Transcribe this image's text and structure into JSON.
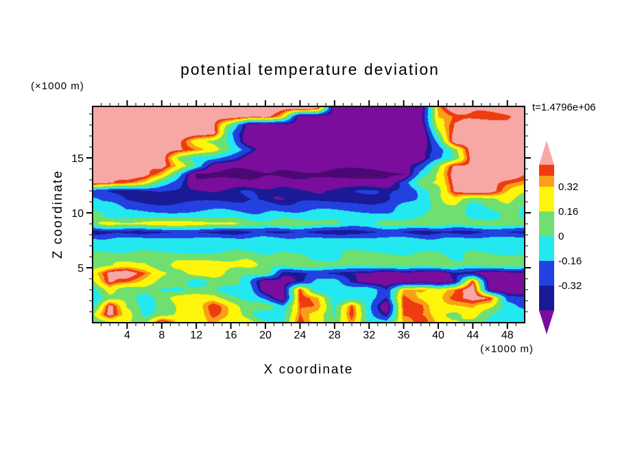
{
  "title": "potential temperature deviation",
  "timestamp": "t=1.4796e+06",
  "axes": {
    "x_label": "X coordinate",
    "y_label": "Z coordinate",
    "x_unit": "(×1000 m)",
    "y_unit": "(×1000 m)"
  },
  "chart_data": {
    "type": "heatmap",
    "title": "potential temperature deviation",
    "xlabel": "X coordinate (×1000 m)",
    "ylabel": "Z coordinate (×1000 m)",
    "time_annotation": "t=1.4796e+06",
    "grid_on": false,
    "x_axis": {
      "min": 0,
      "max": 50,
      "minor_step": 1,
      "major_step": 4,
      "ticks": [
        4,
        8,
        12,
        16,
        20,
        24,
        28,
        32,
        36,
        40,
        44,
        48
      ]
    },
    "y_axis": {
      "min": 0,
      "max": 19.7,
      "minor_step": 1,
      "major_step": 5,
      "ticks": [
        5,
        10,
        15
      ]
    },
    "levels": {
      "edges": [
        -0.6,
        -0.4,
        -0.32,
        -0.16,
        0,
        0.16,
        0.32,
        0.4,
        0.48
      ],
      "colors": [
        "#4A0873",
        "#7A0D9C",
        "#1A1A96",
        "#2341E0",
        "#23E8F0",
        "#6FE06F",
        "#FDF50A",
        "#FB9E18",
        "#EF3B10",
        "#F7A8A4"
      ]
    },
    "colorbar": {
      "tick_labels": [
        "0.32",
        "0.16",
        "0",
        "-0.16",
        "-0.32"
      ],
      "top_arrow_color": "#F7A8A4",
      "bottom_arrow_color": "#7A0D9C"
    },
    "grid": {
      "x": [
        0,
        2,
        4,
        6,
        8,
        10,
        12,
        14,
        16,
        18,
        20,
        22,
        24,
        26,
        28,
        30,
        32,
        34,
        36,
        38,
        40,
        42,
        44,
        46,
        48,
        50
      ],
      "z": [
        19.5,
        18.75,
        18,
        17.25,
        16.5,
        15.75,
        15,
        14.25,
        13.5,
        12.75,
        12,
        11.25,
        10.5,
        9.75,
        9,
        8.25,
        7.5,
        6.75,
        6,
        5.25,
        4.5,
        3.75,
        3,
        2.25,
        1.5,
        0.75,
        0
      ],
      "values": [
        [
          0.56,
          0.56,
          0.56,
          0.56,
          0.56,
          0.56,
          0.56,
          0.56,
          0.56,
          0.56,
          0.56,
          0.56,
          0.56,
          0.44,
          -0.52,
          -0.52,
          -0.52,
          -0.52,
          -0.52,
          -0.52,
          0.36,
          0.56,
          0.56,
          0.56,
          0.56,
          0.56
        ],
        [
          0.56,
          0.56,
          0.56,
          0.56,
          0.56,
          0.56,
          0.56,
          0.56,
          0.56,
          0.56,
          0.56,
          0.24,
          -0.52,
          -0.52,
          -0.52,
          -0.52,
          -0.52,
          -0.52,
          -0.52,
          -0.52,
          0.36,
          0.44,
          0.44,
          0.44,
          0.44,
          0.56
        ],
        [
          0.56,
          0.56,
          0.56,
          0.56,
          0.56,
          0.56,
          0.56,
          0.56,
          0.08,
          -0.52,
          -0.52,
          -0.52,
          -0.52,
          -0.52,
          -0.52,
          -0.52,
          -0.52,
          -0.52,
          -0.52,
          -0.52,
          0.24,
          0.56,
          0.56,
          0.56,
          0.56,
          0.56
        ],
        [
          0.56,
          0.56,
          0.56,
          0.56,
          0.56,
          0.56,
          0.56,
          0.56,
          -0.08,
          -0.52,
          -0.52,
          -0.52,
          -0.52,
          -0.52,
          -0.52,
          -0.52,
          -0.52,
          -0.52,
          -0.52,
          -0.52,
          0.08,
          0.56,
          0.56,
          0.56,
          0.56,
          0.56
        ],
        [
          0.56,
          0.56,
          0.56,
          0.56,
          0.56,
          0.56,
          0.24,
          0.08,
          -0.08,
          -0.52,
          -0.52,
          -0.52,
          -0.52,
          -0.52,
          -0.52,
          -0.52,
          -0.52,
          -0.52,
          -0.52,
          -0.52,
          -0.08,
          0.56,
          0.56,
          0.56,
          0.56,
          0.56
        ],
        [
          0.56,
          0.56,
          0.56,
          0.56,
          0.56,
          0.56,
          0.44,
          0.24,
          -0.08,
          -0.24,
          -0.52,
          -0.52,
          -0.52,
          -0.52,
          -0.52,
          -0.52,
          -0.52,
          -0.52,
          -0.52,
          -0.52,
          -0.24,
          0.08,
          0.56,
          0.56,
          0.56,
          0.56
        ],
        [
          0.56,
          0.56,
          0.56,
          0.56,
          0.56,
          0.08,
          -0.08,
          -0.08,
          -0.24,
          -0.52,
          -0.52,
          -0.52,
          -0.52,
          -0.52,
          -0.52,
          -0.52,
          -0.52,
          -0.52,
          -0.52,
          -0.52,
          -0.24,
          0.08,
          0.56,
          0.56,
          0.56,
          0.56
        ],
        [
          0.56,
          0.56,
          0.56,
          0.56,
          0.56,
          0.24,
          -0.08,
          -0.52,
          -0.52,
          -0.52,
          -0.52,
          -0.52,
          -0.52,
          -0.52,
          -0.52,
          -0.52,
          -0.52,
          -0.52,
          -0.52,
          -0.24,
          0.08,
          0.56,
          0.56,
          0.56,
          0.56,
          0.56
        ],
        [
          0.56,
          0.56,
          0.56,
          0.56,
          0.36,
          -0.08,
          -0.66,
          -0.66,
          -0.66,
          -0.66,
          -0.66,
          -0.66,
          -0.66,
          -0.66,
          -0.66,
          -0.66,
          -0.66,
          -0.66,
          -0.66,
          -0.08,
          0.24,
          0.56,
          0.56,
          0.56,
          0.56,
          0.44
        ],
        [
          0.56,
          0.56,
          0.44,
          0.24,
          -0.08,
          -0.24,
          -0.52,
          -0.52,
          -0.52,
          -0.52,
          -0.52,
          -0.52,
          -0.52,
          -0.52,
          -0.52,
          -0.52,
          -0.52,
          -0.52,
          -0.24,
          0.08,
          0.24,
          0.56,
          0.56,
          0.56,
          0.44,
          0.36
        ],
        [
          -0.24,
          -0.36,
          -0.36,
          -0.36,
          -0.36,
          -0.36,
          -0.36,
          -0.36,
          -0.36,
          -0.36,
          -0.36,
          -0.36,
          -0.36,
          -0.36,
          -0.36,
          -0.36,
          -0.36,
          -0.36,
          -0.24,
          -0.08,
          0.08,
          0.56,
          0.56,
          0.56,
          0.36,
          0.24
        ],
        [
          -0.08,
          -0.24,
          -0.36,
          -0.36,
          -0.36,
          -0.36,
          -0.36,
          -0.36,
          -0.36,
          -0.36,
          -0.36,
          -0.36,
          -0.36,
          -0.36,
          -0.36,
          -0.36,
          -0.36,
          -0.36,
          -0.24,
          -0.08,
          0.08,
          0.24,
          0.08,
          0.08,
          0.24,
          0.08
        ],
        [
          -0.08,
          -0.08,
          -0.24,
          -0.24,
          -0.24,
          -0.24,
          -0.24,
          -0.24,
          -0.24,
          -0.24,
          -0.24,
          -0.24,
          -0.24,
          -0.24,
          -0.24,
          -0.24,
          -0.24,
          -0.24,
          -0.08,
          -0.08,
          0.08,
          0.08,
          -0.08,
          0.08,
          0.08,
          -0.08
        ],
        [
          0.08,
          -0.08,
          -0.08,
          -0.08,
          -0.08,
          -0.08,
          -0.08,
          -0.08,
          -0.08,
          -0.08,
          -0.08,
          -0.08,
          -0.08,
          -0.08,
          -0.08,
          -0.08,
          -0.08,
          -0.08,
          -0.08,
          -0.08,
          0.08,
          0.08,
          -0.08,
          -0.08,
          0.08,
          -0.08
        ],
        [
          0.08,
          0.24,
          0.24,
          0.24,
          0.24,
          0.24,
          0.24,
          0.24,
          0.24,
          0.08,
          0.08,
          0.08,
          0.08,
          0.08,
          0.08,
          -0.08,
          -0.08,
          0.08,
          0.08,
          0.08,
          0.08,
          0.08,
          0.08,
          0.08,
          0.08,
          0.08
        ],
        [
          -0.36,
          -0.36,
          -0.36,
          -0.36,
          -0.36,
          -0.36,
          -0.36,
          -0.36,
          -0.36,
          -0.36,
          -0.36,
          -0.36,
          -0.36,
          -0.36,
          -0.36,
          -0.36,
          -0.36,
          -0.36,
          -0.36,
          -0.36,
          -0.36,
          -0.36,
          -0.36,
          -0.36,
          -0.36,
          -0.36
        ],
        [
          -0.08,
          -0.08,
          -0.08,
          -0.08,
          -0.08,
          -0.08,
          -0.08,
          -0.08,
          -0.08,
          -0.08,
          -0.08,
          -0.08,
          -0.08,
          -0.08,
          -0.08,
          -0.08,
          -0.08,
          -0.08,
          -0.08,
          -0.08,
          -0.08,
          -0.08,
          -0.08,
          -0.08,
          -0.08,
          -0.08
        ],
        [
          -0.08,
          -0.08,
          -0.08,
          -0.08,
          -0.08,
          -0.08,
          -0.08,
          -0.08,
          -0.08,
          -0.08,
          -0.08,
          -0.08,
          -0.08,
          -0.08,
          -0.08,
          -0.08,
          -0.08,
          -0.08,
          -0.08,
          -0.08,
          -0.08,
          -0.08,
          -0.08,
          -0.08,
          -0.08,
          -0.08
        ],
        [
          0.08,
          0.08,
          0.08,
          0.08,
          0.08,
          0.08,
          0.08,
          0.08,
          0.08,
          0.08,
          0.08,
          0.08,
          0.08,
          -0.08,
          -0.08,
          0.08,
          0.08,
          0.08,
          0.08,
          0.08,
          0.08,
          -0.08,
          0.08,
          0.08,
          0.08,
          0.08
        ],
        [
          0.08,
          0.08,
          0.24,
          0.24,
          0.08,
          0.24,
          0.24,
          0.24,
          0.24,
          0.24,
          0.08,
          0.08,
          0.08,
          0.08,
          0.08,
          0.08,
          0.08,
          0.08,
          0.08,
          0.08,
          0.08,
          0.08,
          0.08,
          0.08,
          0.08,
          0.08
        ],
        [
          0.24,
          0.56,
          0.56,
          0.44,
          0.24,
          0.08,
          0.24,
          0.24,
          0.08,
          0.08,
          0.08,
          -0.36,
          -0.36,
          -0.36,
          -0.36,
          -0.36,
          -0.36,
          -0.52,
          -0.52,
          -0.52,
          -0.52,
          -0.36,
          -0.36,
          -0.52,
          -0.52,
          -0.52
        ],
        [
          0.08,
          0.56,
          0.44,
          0.24,
          0.08,
          0.08,
          -0.08,
          0.08,
          0.08,
          -0.08,
          -0.52,
          -0.52,
          -0.36,
          -0.08,
          -0.08,
          -0.36,
          -0.52,
          -0.52,
          -0.52,
          -0.52,
          -0.52,
          -0.36,
          0.44,
          -0.52,
          -0.52,
          -0.52
        ],
        [
          -0.08,
          0.24,
          0.08,
          0.08,
          -0.08,
          -0.08,
          0.08,
          0.08,
          -0.08,
          -0.08,
          -0.52,
          -0.52,
          0.44,
          -0.08,
          -0.08,
          -0.08,
          -0.08,
          -0.36,
          0.36,
          0.36,
          0.24,
          0.44,
          0.56,
          -0.52,
          -0.52,
          -0.52
        ],
        [
          -0.08,
          0.08,
          0.08,
          -0.08,
          0.08,
          0.24,
          0.24,
          0.24,
          0.08,
          -0.08,
          -0.24,
          -0.52,
          0.44,
          0.36,
          -0.08,
          -0.08,
          -0.08,
          -0.36,
          0.44,
          0.36,
          0.24,
          0.44,
          0.56,
          0.44,
          -0.24,
          -0.24
        ],
        [
          -0.08,
          0.56,
          0.08,
          -0.08,
          0.08,
          0.24,
          0.24,
          0.44,
          0.24,
          0.08,
          0.08,
          -0.08,
          0.44,
          0.36,
          -0.08,
          0.44,
          -0.08,
          -0.52,
          0.44,
          0.44,
          0.24,
          0.24,
          0.36,
          0.24,
          -0.08,
          -0.24
        ],
        [
          0.08,
          0.56,
          0.24,
          -0.08,
          0.08,
          0.24,
          0.24,
          0.44,
          0.24,
          0.08,
          -0.08,
          -0.08,
          0.44,
          0.24,
          -0.08,
          0.44,
          -0.08,
          -0.36,
          0.44,
          0.36,
          0.24,
          0.08,
          0.24,
          0.08,
          -0.08,
          -0.08
        ],
        [
          -0.08,
          0.08,
          0.24,
          0.08,
          0.56,
          0.24,
          0.24,
          0.36,
          0.24,
          0.24,
          0.08,
          -0.08,
          0.44,
          0.24,
          0.08,
          0.36,
          -0.08,
          -0.08,
          0.36,
          0.44,
          0.24,
          0.24,
          0.08,
          -0.08,
          -0.08,
          -0.08
        ]
      ]
    }
  }
}
